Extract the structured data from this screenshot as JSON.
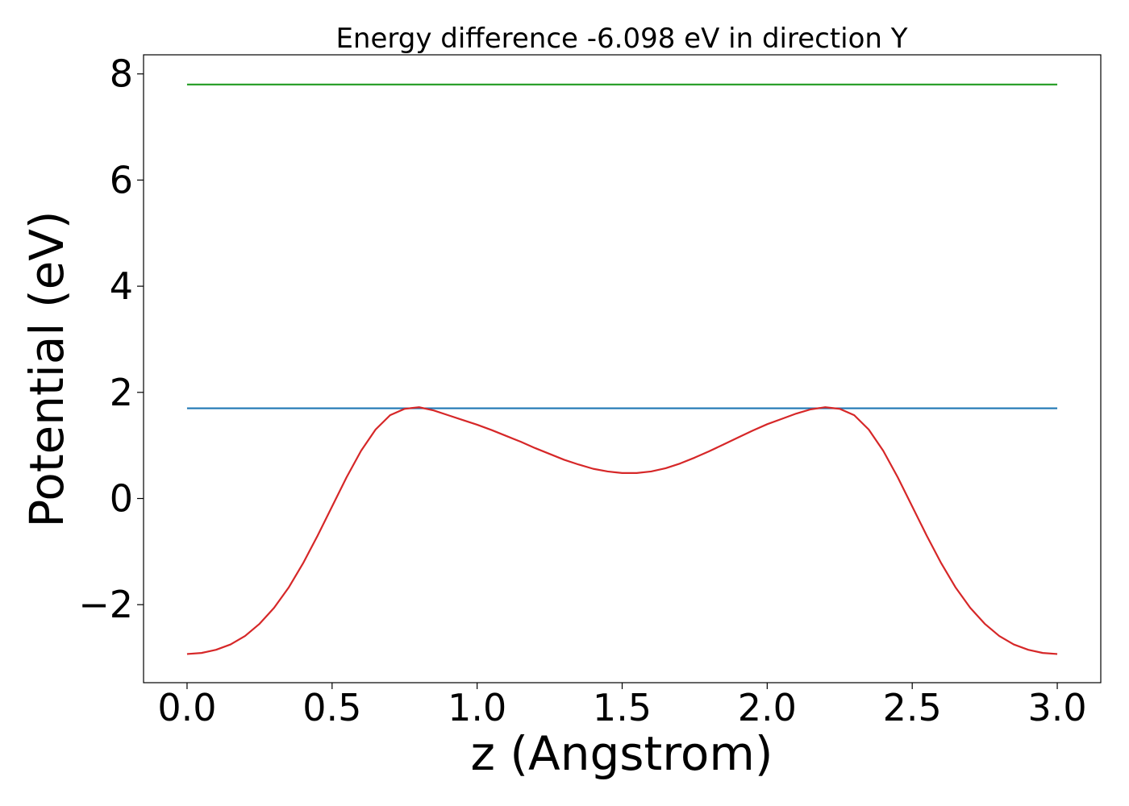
{
  "chart_data": {
    "type": "line",
    "title": "Energy difference -6.098 eV in direction Y",
    "xlabel": "z (Angstrom)",
    "ylabel": "Potential (eV)",
    "xlim": [
      -0.15,
      3.15
    ],
    "ylim": [
      -3.47,
      8.36
    ],
    "xticks": [
      0.0,
      0.5,
      1.0,
      1.5,
      2.0,
      2.5,
      3.0
    ],
    "xtick_labels": [
      "0.0",
      "0.5",
      "1.0",
      "1.5",
      "2.0",
      "2.5",
      "3.0"
    ],
    "yticks": [
      -2,
      0,
      2,
      4,
      6,
      8
    ],
    "ytick_labels": [
      "−2",
      "0",
      "2",
      "4",
      "6",
      "8"
    ],
    "grid": false,
    "series": [
      {
        "color": "#2ca02c",
        "x": [
          0.0,
          3.0
        ],
        "y": [
          7.8,
          7.8
        ]
      },
      {
        "color": "#1f77b4",
        "x": [
          0.0,
          3.0
        ],
        "y": [
          1.7,
          1.7
        ]
      },
      {
        "color": "#d62728",
        "x": [
          0.0,
          0.05,
          0.1,
          0.15,
          0.2,
          0.25,
          0.3,
          0.35,
          0.4,
          0.45,
          0.5,
          0.55,
          0.6,
          0.65,
          0.7,
          0.75,
          0.8,
          0.85,
          0.9,
          0.95,
          1.0,
          1.05,
          1.1,
          1.15,
          1.2,
          1.25,
          1.3,
          1.35,
          1.4,
          1.45,
          1.5,
          1.55,
          1.6,
          1.65,
          1.7,
          1.75,
          1.8,
          1.85,
          1.9,
          1.95,
          2.0,
          2.05,
          2.1,
          2.15,
          2.2,
          2.25,
          2.3,
          2.35,
          2.4,
          2.45,
          2.5,
          2.55,
          2.6,
          2.65,
          2.7,
          2.75,
          2.8,
          2.85,
          2.9,
          2.95,
          3.0
        ],
        "y": [
          -2.93,
          -2.91,
          -2.85,
          -2.75,
          -2.59,
          -2.36,
          -2.06,
          -1.68,
          -1.22,
          -0.7,
          -0.15,
          0.4,
          0.9,
          1.3,
          1.57,
          1.69,
          1.72,
          1.66,
          1.57,
          1.48,
          1.39,
          1.29,
          1.18,
          1.07,
          0.95,
          0.84,
          0.73,
          0.64,
          0.56,
          0.51,
          0.48,
          0.48,
          0.51,
          0.57,
          0.66,
          0.77,
          0.89,
          1.02,
          1.15,
          1.28,
          1.4,
          1.5,
          1.6,
          1.68,
          1.72,
          1.69,
          1.57,
          1.3,
          0.9,
          0.4,
          -0.15,
          -0.7,
          -1.22,
          -1.68,
          -2.06,
          -2.36,
          -2.59,
          -2.75,
          -2.85,
          -2.91,
          -2.93
        ]
      }
    ]
  }
}
